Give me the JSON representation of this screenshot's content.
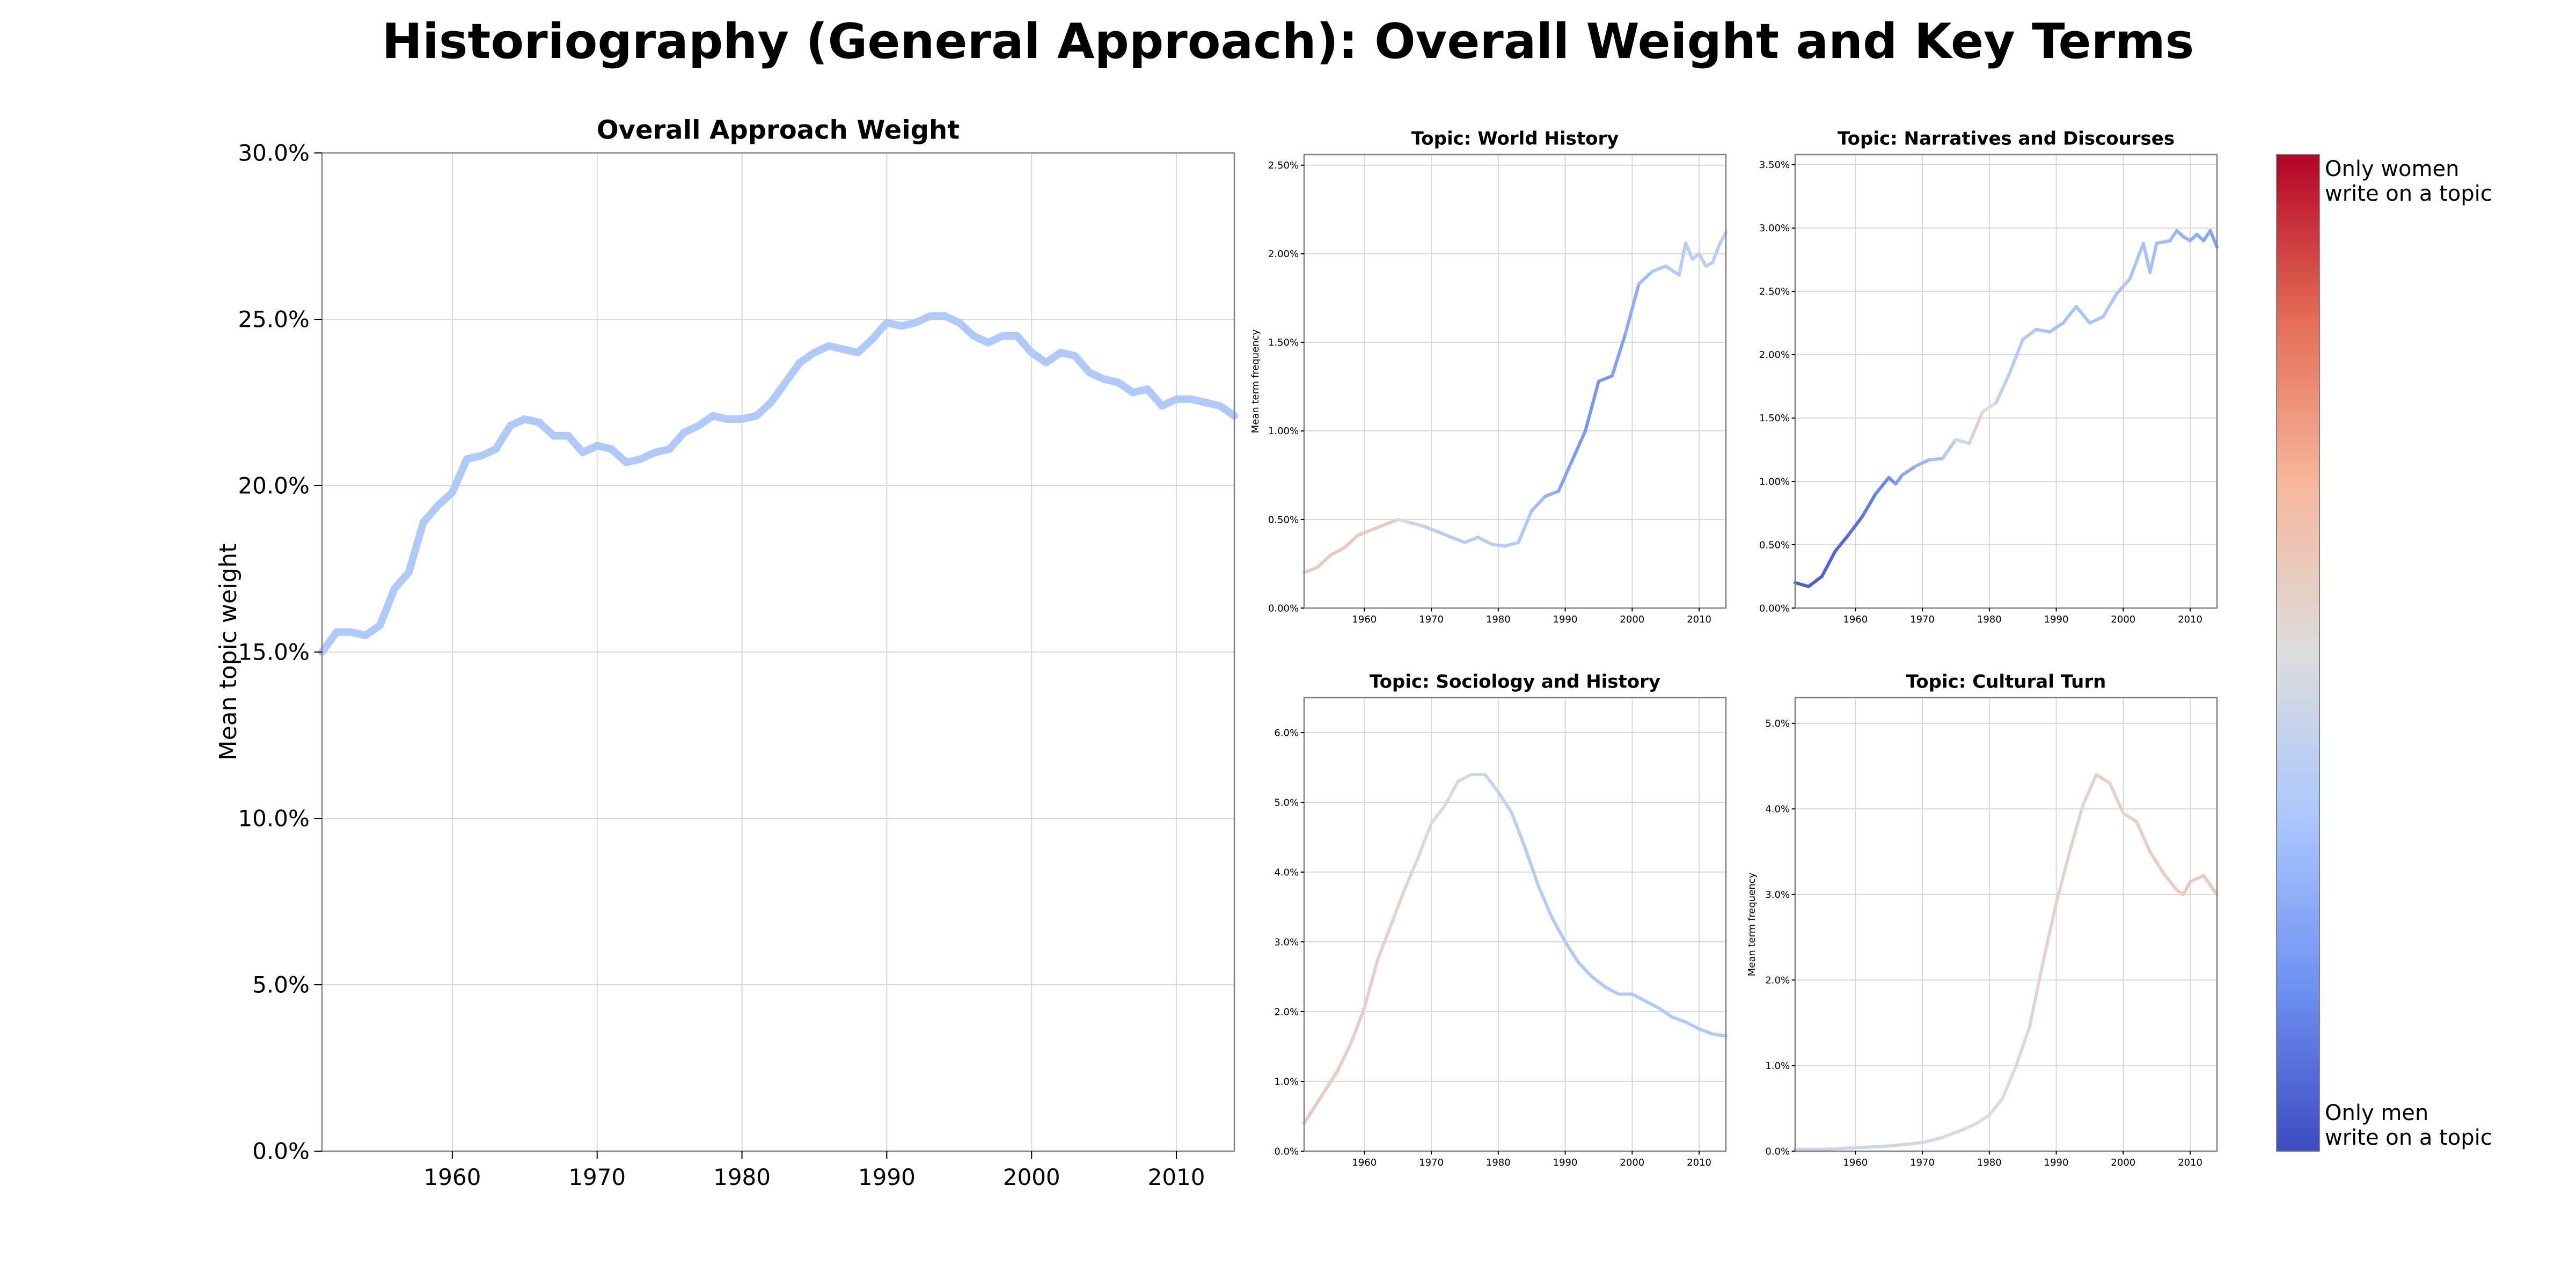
{
  "figure": {
    "title": "Historiography (General Approach): Overall Weight and Key Terms"
  },
  "colorbar": {
    "top_label": "Only women\nwrite on a topic",
    "bottom_label": "Only men\nwrite on a topic",
    "stops": [
      "#3b4cc0",
      "#6f92f3",
      "#aac7fd",
      "#dcdddd",
      "#f6b89c",
      "#e46e56",
      "#b40426"
    ]
  },
  "chart_data": [
    {
      "id": "overall",
      "type": "line",
      "title": "Overall Approach Weight",
      "xlabel": "",
      "ylabel": "Mean topic weight",
      "xlim": [
        1951,
        2014
      ],
      "ylim": [
        0,
        30
      ],
      "xticks": [
        1960,
        1970,
        1980,
        1990,
        2000,
        2010
      ],
      "yticks": [
        0,
        5,
        10,
        15,
        20,
        25,
        30
      ],
      "ytick_decimals": 1,
      "grid": true,
      "x": [
        1951,
        1952,
        1953,
        1954,
        1955,
        1956,
        1957,
        1958,
        1959,
        1960,
        1961,
        1962,
        1963,
        1964,
        1965,
        1966,
        1967,
        1968,
        1969,
        1970,
        1971,
        1972,
        1973,
        1974,
        1975,
        1976,
        1977,
        1978,
        1979,
        1980,
        1981,
        1982,
        1983,
        1984,
        1985,
        1986,
        1987,
        1988,
        1989,
        1990,
        1991,
        1992,
        1993,
        1994,
        1995,
        1996,
        1997,
        1998,
        1999,
        2000,
        2001,
        2002,
        2003,
        2004,
        2005,
        2006,
        2007,
        2008,
        2009,
        2010,
        2011,
        2012,
        2013,
        2014
      ],
      "y": [
        15.0,
        15.6,
        15.6,
        15.5,
        15.8,
        16.9,
        17.4,
        18.9,
        19.4,
        19.8,
        20.8,
        20.9,
        21.1,
        21.8,
        22.0,
        21.9,
        21.5,
        21.5,
        21.0,
        21.2,
        21.1,
        20.7,
        20.8,
        21.0,
        21.1,
        21.6,
        21.8,
        22.1,
        22.0,
        22.0,
        22.1,
        22.5,
        23.1,
        23.7,
        24.0,
        24.2,
        24.1,
        24.0,
        24.4,
        24.9,
        24.8,
        24.9,
        25.1,
        25.1,
        24.9,
        24.5,
        24.3,
        24.5,
        24.5,
        24.0,
        23.7,
        24.0,
        23.9,
        23.4,
        23.2,
        23.1,
        22.8,
        22.9,
        22.4,
        22.6,
        22.6,
        22.5,
        22.4,
        22.1
      ],
      "gender_share": [
        0.35,
        0.35,
        0.35,
        0.35,
        0.35,
        0.35,
        0.35,
        0.35,
        0.35,
        0.35,
        0.35,
        0.35,
        0.35,
        0.35,
        0.35,
        0.35,
        0.35,
        0.35,
        0.35,
        0.35,
        0.35,
        0.35,
        0.35,
        0.35,
        0.35,
        0.35,
        0.35,
        0.35,
        0.35,
        0.35,
        0.35,
        0.35,
        0.35,
        0.35,
        0.35,
        0.35,
        0.35,
        0.35,
        0.35,
        0.35,
        0.35,
        0.35,
        0.35,
        0.35,
        0.35,
        0.35,
        0.35,
        0.35,
        0.35,
        0.35,
        0.35,
        0.35,
        0.35,
        0.35,
        0.35,
        0.35,
        0.35,
        0.35,
        0.35,
        0.35,
        0.35,
        0.35,
        0.35,
        0.35
      ]
    },
    {
      "id": "world-history",
      "type": "line",
      "title": "Topic: World History",
      "xlabel": "",
      "ylabel": "Mean term frequency",
      "xlim": [
        1951,
        2014
      ],
      "ylim": [
        0,
        2.56
      ],
      "xticks": [
        1960,
        1970,
        1980,
        1990,
        2000,
        2010
      ],
      "yticks": [
        0,
        0.5,
        1.0,
        1.5,
        2.0,
        2.5
      ],
      "ytick_decimals": 2,
      "grid": true,
      "x": [
        1951,
        1953,
        1955,
        1957,
        1959,
        1961,
        1963,
        1965,
        1967,
        1969,
        1971,
        1973,
        1975,
        1977,
        1979,
        1981,
        1983,
        1985,
        1987,
        1989,
        1991,
        1993,
        1995,
        1997,
        1999,
        2001,
        2003,
        2005,
        2007,
        2008,
        2009,
        2010,
        2011,
        2012,
        2013,
        2014
      ],
      "y": [
        0.2,
        0.23,
        0.3,
        0.34,
        0.41,
        0.44,
        0.47,
        0.5,
        0.48,
        0.46,
        0.43,
        0.4,
        0.37,
        0.4,
        0.36,
        0.35,
        0.37,
        0.55,
        0.63,
        0.66,
        0.83,
        1.0,
        1.28,
        1.31,
        1.55,
        1.83,
        1.9,
        1.93,
        1.88,
        2.06,
        1.97,
        2.0,
        1.93,
        1.95,
        2.05,
        2.12
      ],
      "gender_share": [
        0.58,
        0.58,
        0.58,
        0.58,
        0.58,
        0.58,
        0.58,
        0.58,
        0.45,
        0.42,
        0.38,
        0.37,
        0.37,
        0.37,
        0.37,
        0.37,
        0.37,
        0.32,
        0.28,
        0.24,
        0.2,
        0.19,
        0.18,
        0.2,
        0.22,
        0.28,
        0.33,
        0.35,
        0.36,
        0.38,
        0.38,
        0.38,
        0.38,
        0.38,
        0.38,
        0.38
      ]
    },
    {
      "id": "narratives",
      "type": "line",
      "title": "Topic: Narratives and Discourses",
      "xlabel": "",
      "ylabel": "",
      "xlim": [
        1951,
        2014
      ],
      "ylim": [
        0,
        3.58
      ],
      "xticks": [
        1960,
        1970,
        1980,
        1990,
        2000,
        2010
      ],
      "yticks": [
        0,
        0.5,
        1.0,
        1.5,
        2.0,
        2.5,
        3.0,
        3.5
      ],
      "ytick_decimals": 2,
      "grid": true,
      "x": [
        1951,
        1953,
        1955,
        1957,
        1959,
        1961,
        1963,
        1965,
        1966,
        1967,
        1969,
        1971,
        1973,
        1975,
        1977,
        1979,
        1981,
        1983,
        1985,
        1987,
        1989,
        1991,
        1993,
        1995,
        1997,
        1999,
        2001,
        2003,
        2004,
        2005,
        2007,
        2008,
        2009,
        2010,
        2011,
        2012,
        2013,
        2014
      ],
      "y": [
        0.2,
        0.17,
        0.25,
        0.45,
        0.58,
        0.72,
        0.9,
        1.03,
        0.98,
        1.05,
        1.12,
        1.17,
        1.18,
        1.33,
        1.3,
        1.55,
        1.62,
        1.85,
        2.12,
        2.2,
        2.18,
        2.25,
        2.38,
        2.25,
        2.3,
        2.48,
        2.6,
        2.88,
        2.65,
        2.88,
        2.9,
        2.98,
        2.93,
        2.9,
        2.95,
        2.9,
        2.98,
        2.85
      ],
      "gender_share": [
        0.06,
        0.04,
        0.05,
        0.06,
        0.08,
        0.1,
        0.13,
        0.16,
        0.18,
        0.22,
        0.26,
        0.3,
        0.33,
        0.4,
        0.52,
        0.58,
        0.42,
        0.38,
        0.36,
        0.33,
        0.32,
        0.32,
        0.32,
        0.32,
        0.33,
        0.33,
        0.33,
        0.32,
        0.31,
        0.31,
        0.3,
        0.29,
        0.27,
        0.26,
        0.25,
        0.24,
        0.22,
        0.22
      ]
    },
    {
      "id": "sociology",
      "type": "line",
      "title": "Topic: Sociology and History",
      "xlabel": "",
      "ylabel": "",
      "xlim": [
        1951,
        2014
      ],
      "ylim": [
        0,
        6.5
      ],
      "xticks": [
        1960,
        1970,
        1980,
        1990,
        2000,
        2010
      ],
      "yticks": [
        0,
        1,
        2,
        3,
        4,
        5,
        6
      ],
      "ytick_decimals": 1,
      "grid": true,
      "x": [
        1951,
        1952,
        1954,
        1956,
        1958,
        1960,
        1962,
        1964,
        1966,
        1968,
        1970,
        1972,
        1974,
        1976,
        1978,
        1980,
        1982,
        1984,
        1986,
        1988,
        1990,
        1992,
        1994,
        1996,
        1998,
        2000,
        2002,
        2004,
        2006,
        2008,
        2010,
        2012,
        2014
      ],
      "y": [
        0.4,
        0.55,
        0.85,
        1.15,
        1.55,
        2.05,
        2.75,
        3.25,
        3.75,
        4.2,
        4.7,
        4.95,
        5.3,
        5.4,
        5.4,
        5.15,
        4.85,
        4.35,
        3.8,
        3.35,
        3.0,
        2.7,
        2.5,
        2.35,
        2.25,
        2.25,
        2.15,
        2.05,
        1.92,
        1.85,
        1.75,
        1.68,
        1.65
      ],
      "gender_share": [
        0.58,
        0.58,
        0.58,
        0.57,
        0.57,
        0.56,
        0.55,
        0.54,
        0.54,
        0.53,
        0.52,
        0.5,
        0.48,
        0.46,
        0.44,
        0.42,
        0.4,
        0.38,
        0.36,
        0.36,
        0.35,
        0.35,
        0.35,
        0.35,
        0.35,
        0.35,
        0.35,
        0.35,
        0.35,
        0.35,
        0.35,
        0.35,
        0.35
      ]
    },
    {
      "id": "cultural-turn",
      "type": "line",
      "title": "Topic: Cultural Turn",
      "xlabel": "",
      "ylabel": "Mean term frequency",
      "xlim": [
        1951,
        2014
      ],
      "ylim": [
        0,
        5.3
      ],
      "xticks": [
        1960,
        1970,
        1980,
        1990,
        2000,
        2010
      ],
      "yticks": [
        0,
        1,
        2,
        3,
        4,
        5
      ],
      "ytick_decimals": 1,
      "grid": true,
      "x": [
        1951,
        1955,
        1960,
        1965,
        1970,
        1973,
        1976,
        1978,
        1980,
        1982,
        1984,
        1986,
        1988,
        1990,
        1992,
        1994,
        1996,
        1998,
        2000,
        2002,
        2004,
        2006,
        2008,
        2009,
        2010,
        2012,
        2014
      ],
      "y": [
        0.02,
        0.02,
        0.04,
        0.06,
        0.1,
        0.16,
        0.25,
        0.32,
        0.42,
        0.62,
        1.0,
        1.45,
        2.2,
        2.9,
        3.5,
        4.05,
        4.4,
        4.3,
        3.95,
        3.85,
        3.5,
        3.25,
        3.05,
        3.0,
        3.15,
        3.22,
        3.0
      ],
      "gender_share": [
        0.45,
        0.45,
        0.45,
        0.45,
        0.46,
        0.47,
        0.48,
        0.49,
        0.5,
        0.51,
        0.52,
        0.53,
        0.54,
        0.54,
        0.54,
        0.54,
        0.55,
        0.55,
        0.55,
        0.56,
        0.56,
        0.57,
        0.57,
        0.57,
        0.58,
        0.58,
        0.58
      ]
    }
  ]
}
